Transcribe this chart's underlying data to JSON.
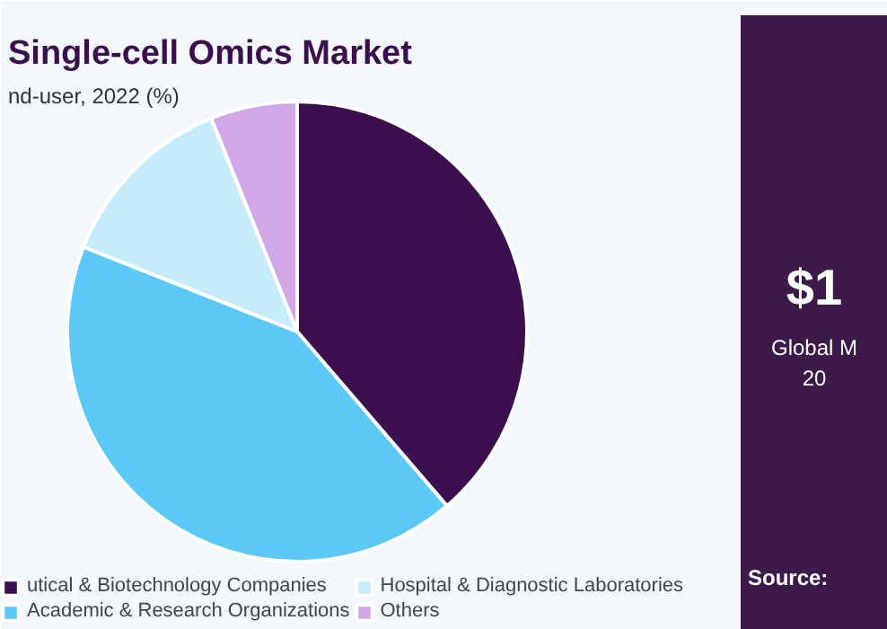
{
  "chart_data": {
    "type": "pie",
    "title": "Single-cell Omics Market",
    "subtitle": "nd-user, 2022 (%)",
    "categories": [
      "utical & Biotechnology Companies",
      "Academic & Research Organizations",
      "Hospital & Diagnostic Laboratories",
      "Others"
    ],
    "values": [
      38.7,
      42.3,
      12.9,
      6.1
    ],
    "colors": [
      "#3b0f4d",
      "#5bc8f5",
      "#c6ecfa",
      "#d0a8e8"
    ],
    "legend": "bottom",
    "annotations": [
      "$1",
      "Global M",
      "20",
      "Source:"
    ]
  }
}
